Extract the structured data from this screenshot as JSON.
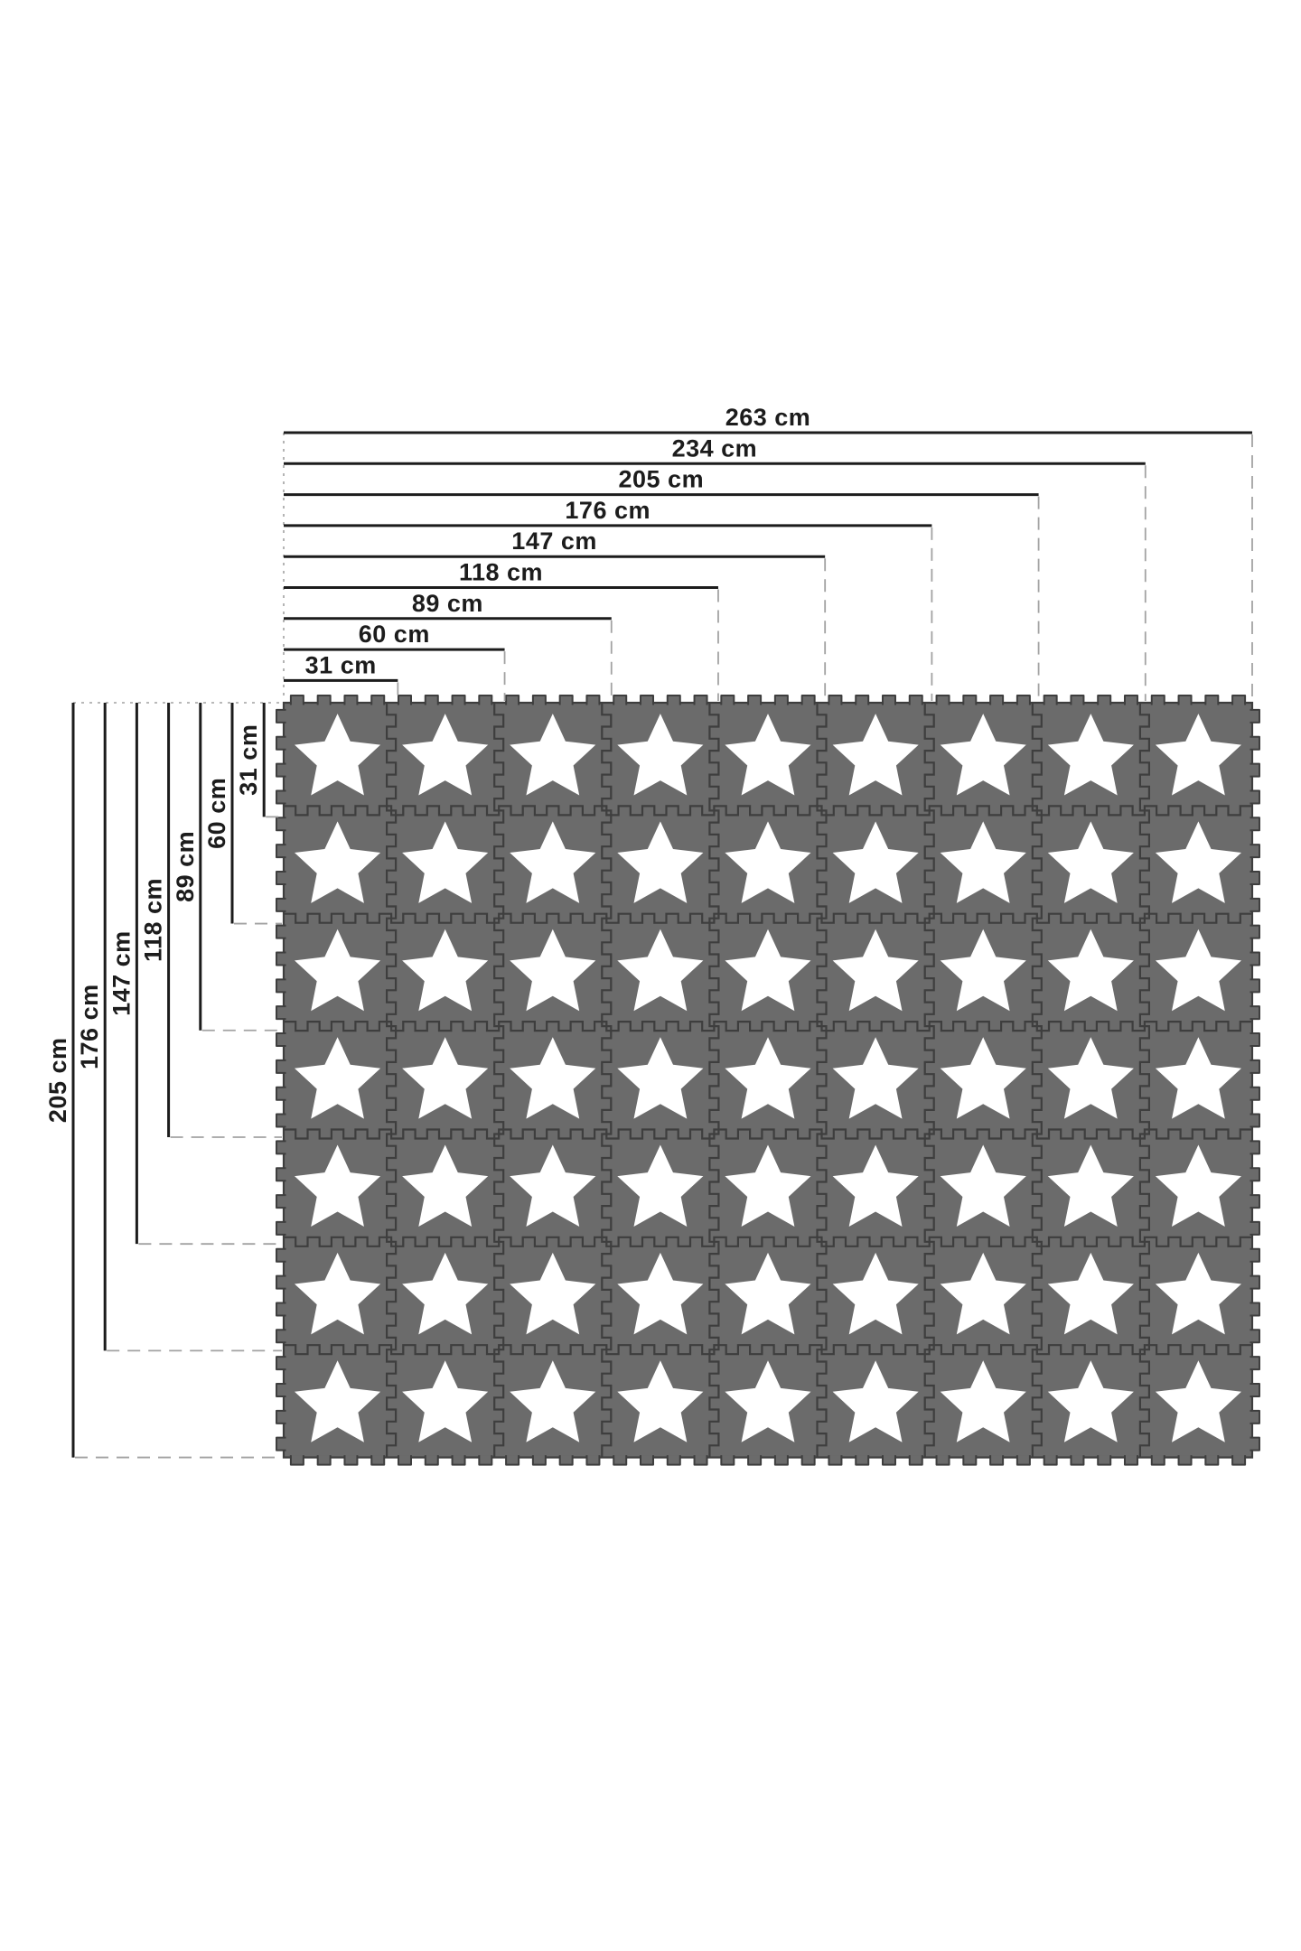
{
  "diagram": {
    "type": "product-dimension-diagram",
    "subject": "interlocking foam puzzle play mat with white star tiles",
    "unit": "cm",
    "grid": {
      "columns": 9,
      "rows": 7,
      "tile_count": 63,
      "tile_size_cm": 31,
      "tile_pitch_cm": 29,
      "tile_motif": "five-pointed-star"
    },
    "width_dimensions": [
      {
        "value": 263,
        "label": "263 cm"
      },
      {
        "value": 234,
        "label": "234 cm"
      },
      {
        "value": 205,
        "label": "205 cm"
      },
      {
        "value": 176,
        "label": "176 cm"
      },
      {
        "value": 147,
        "label": "147 cm"
      },
      {
        "value": 118,
        "label": "118 cm"
      },
      {
        "value": 89,
        "label": "89 cm"
      },
      {
        "value": 60,
        "label": "60 cm"
      },
      {
        "value": 31,
        "label": "31 cm"
      }
    ],
    "height_dimensions": [
      {
        "value": 205,
        "label": "205 cm"
      },
      {
        "value": 176,
        "label": "176 cm"
      },
      {
        "value": 147,
        "label": "147 cm"
      },
      {
        "value": 118,
        "label": "118 cm"
      },
      {
        "value": 89,
        "label": "89 cm"
      },
      {
        "value": 60,
        "label": "60 cm"
      },
      {
        "value": 31,
        "label": "31 cm"
      }
    ],
    "colors": {
      "background": "#ffffff",
      "tile_gray": "#6b6b6b",
      "seam_dark": "#3e3e3e",
      "star_white": "#ffffff",
      "dimension_line": "#1c1c1c",
      "guide_gray": "#a2a2a2",
      "text": "#1c1c1c"
    }
  }
}
